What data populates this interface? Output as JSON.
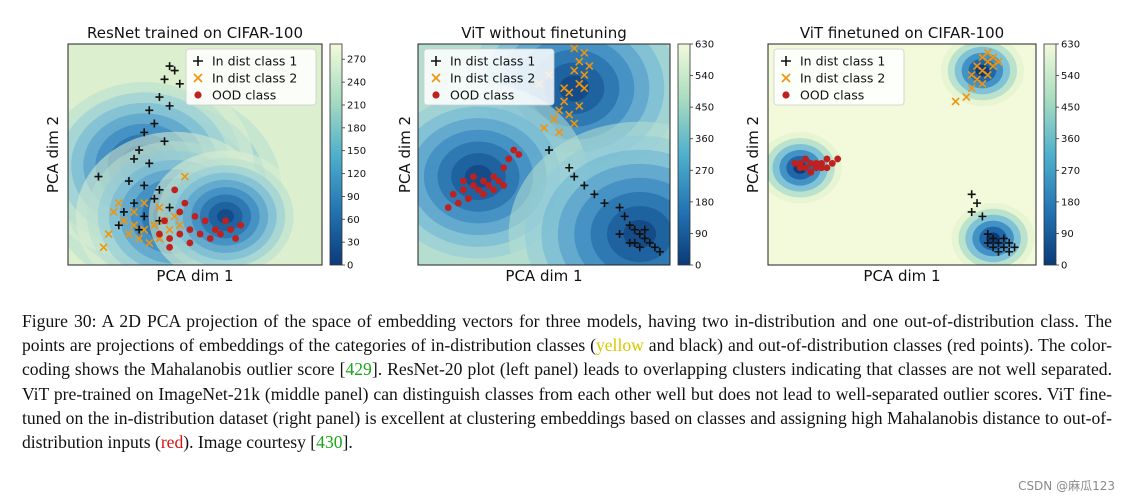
{
  "chart_data": [
    {
      "type": "scatter",
      "title": "ResNet trained on CIFAR-100",
      "xlabel": "PCA dim 1",
      "ylabel": "PCA dim 2",
      "colorbar_ticks": [
        "0",
        "30",
        "60",
        "90",
        "120",
        "150",
        "180",
        "210",
        "240",
        "270"
      ],
      "colorbar_range": [
        0,
        290
      ],
      "legend_placement": "top-right",
      "centers": [
        {
          "x": 0.38,
          "y": 0.66,
          "s": 0.12
        },
        {
          "x": 0.3,
          "y": 0.55,
          "s": 0.1
        },
        {
          "x": 0.42,
          "y": 0.78,
          "s": 0.09
        },
        {
          "x": 0.62,
          "y": 0.78,
          "s": 0.07
        }
      ],
      "series": [
        {
          "name": "In dist class 1",
          "marker": "plus",
          "color": "#111111",
          "points": [
            [
              0.4,
              0.1
            ],
            [
              0.42,
              0.12
            ],
            [
              0.38,
              0.16
            ],
            [
              0.44,
              0.18
            ],
            [
              0.36,
              0.24
            ],
            [
              0.4,
              0.28
            ],
            [
              0.32,
              0.3
            ],
            [
              0.34,
              0.36
            ],
            [
              0.3,
              0.4
            ],
            [
              0.38,
              0.44
            ],
            [
              0.28,
              0.48
            ],
            [
              0.26,
              0.52
            ],
            [
              0.32,
              0.54
            ],
            [
              0.12,
              0.6
            ],
            [
              0.24,
              0.62
            ],
            [
              0.3,
              0.64
            ],
            [
              0.36,
              0.66
            ],
            [
              0.34,
              0.7
            ],
            [
              0.26,
              0.72
            ],
            [
              0.22,
              0.76
            ],
            [
              0.3,
              0.78
            ],
            [
              0.36,
              0.8
            ],
            [
              0.4,
              0.74
            ],
            [
              0.2,
              0.82
            ],
            [
              0.28,
              0.84
            ]
          ]
        },
        {
          "name": "In dist class 2",
          "marker": "x",
          "color": "#f0940c",
          "points": [
            [
              0.18,
              0.76
            ],
            [
              0.22,
              0.8
            ],
            [
              0.26,
              0.82
            ],
            [
              0.3,
              0.84
            ],
            [
              0.34,
              0.82
            ],
            [
              0.38,
              0.8
            ],
            [
              0.42,
              0.78
            ],
            [
              0.24,
              0.86
            ],
            [
              0.28,
              0.88
            ],
            [
              0.32,
              0.9
            ],
            [
              0.36,
              0.88
            ],
            [
              0.16,
              0.86
            ],
            [
              0.14,
              0.92
            ],
            [
              0.4,
              0.84
            ],
            [
              0.44,
              0.82
            ],
            [
              0.46,
              0.6
            ],
            [
              0.2,
              0.72
            ],
            [
              0.26,
              0.76
            ],
            [
              0.36,
              0.74
            ],
            [
              0.3,
              0.72
            ]
          ]
        },
        {
          "name": "OOD class",
          "marker": "dot",
          "color": "#c0201e",
          "points": [
            [
              0.36,
              0.86
            ],
            [
              0.4,
              0.88
            ],
            [
              0.44,
              0.86
            ],
            [
              0.48,
              0.84
            ],
            [
              0.52,
              0.86
            ],
            [
              0.56,
              0.88
            ],
            [
              0.6,
              0.86
            ],
            [
              0.64,
              0.84
            ],
            [
              0.68,
              0.82
            ],
            [
              0.5,
              0.78
            ],
            [
              0.46,
              0.72
            ],
            [
              0.42,
              0.66
            ],
            [
              0.48,
              0.9
            ],
            [
              0.54,
              0.8
            ],
            [
              0.58,
              0.84
            ],
            [
              0.38,
              0.8
            ],
            [
              0.44,
              0.76
            ],
            [
              0.62,
              0.8
            ],
            [
              0.66,
              0.88
            ],
            [
              0.4,
              0.92
            ]
          ]
        }
      ]
    },
    {
      "type": "scatter",
      "title": "ViT without finetuning",
      "xlabel": "PCA dim 1",
      "ylabel": "",
      "colorbar_ticks": [
        "0",
        "90",
        "180",
        "270",
        "360",
        "450",
        "540",
        "630"
      ],
      "colorbar_range": [
        0,
        630
      ],
      "legend_placement": "top-left",
      "centers": [
        {
          "x": 0.62,
          "y": 0.2,
          "s": 0.11
        },
        {
          "x": 0.24,
          "y": 0.6,
          "s": 0.1
        },
        {
          "x": 0.88,
          "y": 0.86,
          "s": 0.12
        }
      ],
      "series": [
        {
          "name": "In dist class 1",
          "marker": "plus",
          "color": "#111111",
          "points": [
            [
              0.52,
              0.48
            ],
            [
              0.6,
              0.56
            ],
            [
              0.62,
              0.6
            ],
            [
              0.66,
              0.64
            ],
            [
              0.7,
              0.68
            ],
            [
              0.74,
              0.72
            ],
            [
              0.8,
              0.74
            ],
            [
              0.82,
              0.78
            ],
            [
              0.84,
              0.82
            ],
            [
              0.86,
              0.84
            ],
            [
              0.88,
              0.86
            ],
            [
              0.9,
              0.88
            ],
            [
              0.92,
              0.9
            ],
            [
              0.94,
              0.92
            ],
            [
              0.84,
              0.9
            ],
            [
              0.88,
              0.92
            ],
            [
              0.96,
              0.94
            ],
            [
              0.8,
              0.86
            ],
            [
              0.9,
              0.84
            ],
            [
              0.86,
              0.9
            ]
          ]
        },
        {
          "name": "In dist class 2",
          "marker": "x",
          "color": "#f0940c",
          "points": [
            [
              0.62,
              0.02
            ],
            [
              0.66,
              0.04
            ],
            [
              0.64,
              0.08
            ],
            [
              0.68,
              0.1
            ],
            [
              0.62,
              0.12
            ],
            [
              0.66,
              0.14
            ],
            [
              0.64,
              0.18
            ],
            [
              0.6,
              0.22
            ],
            [
              0.58,
              0.26
            ],
            [
              0.56,
              0.3
            ],
            [
              0.54,
              0.34
            ],
            [
              0.5,
              0.38
            ],
            [
              0.6,
              0.32
            ],
            [
              0.64,
              0.28
            ],
            [
              0.58,
              0.2
            ],
            [
              0.52,
              0.14
            ],
            [
              0.48,
              0.18
            ],
            [
              0.56,
              0.4
            ],
            [
              0.66,
              0.2
            ],
            [
              0.62,
              0.36
            ]
          ]
        },
        {
          "name": "OOD class",
          "marker": "dot",
          "color": "#c0201e",
          "points": [
            [
              0.14,
              0.68
            ],
            [
              0.18,
              0.66
            ],
            [
              0.22,
              0.64
            ],
            [
              0.26,
              0.62
            ],
            [
              0.3,
              0.6
            ],
            [
              0.34,
              0.56
            ],
            [
              0.36,
              0.52
            ],
            [
              0.38,
              0.48
            ],
            [
              0.2,
              0.7
            ],
            [
              0.24,
              0.66
            ],
            [
              0.28,
              0.64
            ],
            [
              0.16,
              0.72
            ],
            [
              0.12,
              0.74
            ],
            [
              0.32,
              0.62
            ],
            [
              0.26,
              0.68
            ],
            [
              0.22,
              0.6
            ],
            [
              0.3,
              0.66
            ],
            [
              0.18,
              0.62
            ],
            [
              0.34,
              0.64
            ],
            [
              0.4,
              0.5
            ]
          ]
        }
      ]
    },
    {
      "type": "scatter",
      "title": "ViT finetuned on CIFAR-100",
      "xlabel": "PCA dim 1",
      "ylabel": "PCA dim 2",
      "colorbar_ticks": [
        "0",
        "90",
        "180",
        "270",
        "360",
        "450",
        "540",
        "630"
      ],
      "colorbar_range": [
        0,
        630
      ],
      "legend_placement": "top-left",
      "centers": [
        {
          "x": 0.8,
          "y": 0.12,
          "s": 0.09
        },
        {
          "x": 0.12,
          "y": 0.56,
          "s": 0.09
        },
        {
          "x": 0.84,
          "y": 0.88,
          "s": 0.09
        }
      ],
      "series": [
        {
          "name": "In dist class 1",
          "marker": "plus",
          "color": "#111111",
          "points": [
            [
              0.76,
              0.68
            ],
            [
              0.78,
              0.72
            ],
            [
              0.76,
              0.76
            ],
            [
              0.8,
              0.78
            ],
            [
              0.82,
              0.86
            ],
            [
              0.84,
              0.88
            ],
            [
              0.86,
              0.9
            ],
            [
              0.88,
              0.92
            ],
            [
              0.9,
              0.94
            ],
            [
              0.84,
              0.92
            ],
            [
              0.88,
              0.88
            ],
            [
              0.86,
              0.94
            ],
            [
              0.9,
              0.9
            ],
            [
              0.82,
              0.9
            ],
            [
              0.92,
              0.92
            ]
          ]
        },
        {
          "name": "In dist class 2",
          "marker": "x",
          "color": "#f0940c",
          "points": [
            [
              0.8,
              0.06
            ],
            [
              0.82,
              0.08
            ],
            [
              0.84,
              0.1
            ],
            [
              0.8,
              0.12
            ],
            [
              0.82,
              0.14
            ],
            [
              0.78,
              0.16
            ],
            [
              0.76,
              0.2
            ],
            [
              0.74,
              0.24
            ],
            [
              0.7,
              0.26
            ],
            [
              0.84,
              0.06
            ],
            [
              0.8,
              0.18
            ],
            [
              0.82,
              0.04
            ],
            [
              0.78,
              0.1
            ],
            [
              0.86,
              0.08
            ],
            [
              0.76,
              0.14
            ]
          ]
        },
        {
          "name": "OOD class",
          "marker": "dot",
          "color": "#c0201e",
          "points": [
            [
              0.1,
              0.54
            ],
            [
              0.12,
              0.56
            ],
            [
              0.14,
              0.56
            ],
            [
              0.16,
              0.54
            ],
            [
              0.18,
              0.54
            ],
            [
              0.2,
              0.54
            ],
            [
              0.22,
              0.52
            ],
            [
              0.24,
              0.54
            ],
            [
              0.12,
              0.54
            ],
            [
              0.14,
              0.52
            ],
            [
              0.18,
              0.56
            ],
            [
              0.2,
              0.56
            ],
            [
              0.22,
              0.56
            ],
            [
              0.26,
              0.52
            ],
            [
              0.16,
              0.58
            ]
          ]
        }
      ]
    }
  ],
  "caption": {
    "p1": "Figure 30: A 2D PCA projection of the space of embedding vectors for three models, having two in-distribution and one out-of-distribution class. The points are projections of embeddings of the categories of in-distribution classes (",
    "yellow": "yellow",
    "p2": " and black) and out-of-distribution classes (red points). The color-coding shows the Mahalanobis outlier score [",
    "ref1": "429",
    "p3": "]. ResNet-20 plot (left panel) leads to overlapping clusters indicating that classes are not well separated. ViT pre-trained on ImageNet-21k (middle panel) can distinguish classes from each other well but does not lead to well-separated outlier scores. ViT fine-tuned on the in-distribution dataset (right panel) is excellent at clustering embeddings based on classes and assigning high Mahalanobis distance to out-of-distribution inputs (",
    "red": "red",
    "p4": "). Image courtesy [",
    "ref2": "430",
    "p5": "]."
  },
  "watermark": "CSDN @麻瓜123"
}
